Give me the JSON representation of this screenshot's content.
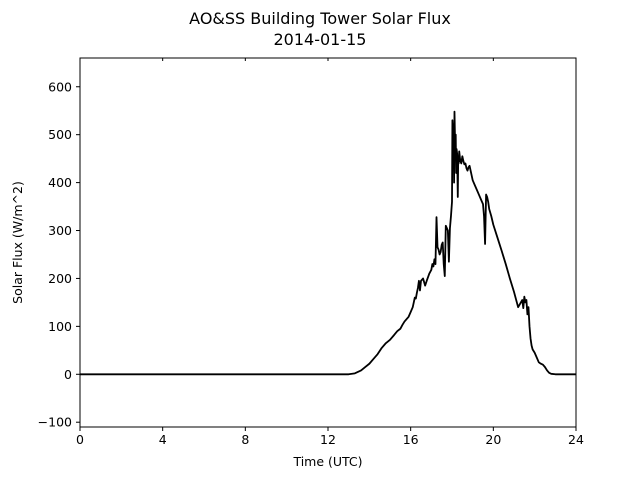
{
  "chart_data": {
    "type": "line",
    "title": "AO&SS Building Tower Solar Flux",
    "subtitle": "2014-01-15",
    "xlabel": "Time (UTC)",
    "ylabel": "Solar Flux (W/m^2)",
    "xlim": [
      0,
      24
    ],
    "ylim": [
      -110,
      660
    ],
    "xticks": [
      0,
      4,
      8,
      12,
      16,
      20,
      24
    ],
    "yticks": [
      -100,
      0,
      100,
      200,
      300,
      400,
      500,
      600
    ],
    "grid": false,
    "legend": "none",
    "series": [
      {
        "color": "#000000",
        "x": [
          0,
          12.0,
          12.6,
          13.0,
          13.3,
          13.6,
          13.8,
          14.0,
          14.2,
          14.4,
          14.6,
          14.8,
          15.0,
          15.2,
          15.35,
          15.5,
          15.6,
          15.7,
          15.8,
          15.9,
          16.0,
          16.1,
          16.15,
          16.2,
          16.25,
          16.3,
          16.35,
          16.4,
          16.45,
          16.5,
          16.6,
          16.7,
          16.8,
          16.9,
          17.0,
          17.05,
          17.1,
          17.15,
          17.2,
          17.25,
          17.3,
          17.35,
          17.4,
          17.45,
          17.5,
          17.55,
          17.6,
          17.65,
          17.7,
          17.75,
          17.8,
          17.85,
          17.9,
          17.95,
          18.0,
          18.02,
          18.05,
          18.08,
          18.1,
          18.12,
          18.15,
          18.18,
          18.2,
          18.22,
          18.25,
          18.28,
          18.3,
          18.32,
          18.35,
          18.4,
          18.45,
          18.5,
          18.55,
          18.6,
          18.65,
          18.7,
          18.75,
          18.8,
          18.85,
          18.9,
          19.0,
          19.1,
          19.2,
          19.3,
          19.4,
          19.5,
          19.55,
          19.6,
          19.65,
          19.7,
          19.75,
          19.8,
          19.9,
          20.0,
          20.2,
          20.4,
          20.6,
          20.8,
          21.0,
          21.2,
          21.4,
          21.45,
          21.5,
          21.55,
          21.6,
          21.65,
          21.7,
          21.75,
          21.8,
          21.85,
          21.9,
          22.0,
          22.1,
          22.2,
          22.3,
          22.4,
          22.5,
          22.6,
          22.7,
          22.8,
          23.0,
          23.2,
          23.5,
          24.0
        ],
        "y": [
          0,
          0,
          0,
          0,
          2,
          8,
          15,
          22,
          32,
          42,
          55,
          65,
          72,
          82,
          90,
          95,
          103,
          110,
          115,
          120,
          130,
          140,
          150,
          160,
          158,
          170,
          180,
          195,
          175,
          195,
          200,
          185,
          198,
          210,
          218,
          230,
          225,
          240,
          230,
          328,
          265,
          260,
          250,
          255,
          270,
          275,
          230,
          205,
          310,
          305,
          300,
          235,
          305,
          330,
          360,
          530,
          505,
          520,
          400,
          548,
          480,
          500,
          420,
          470,
          460,
          370,
          450,
          440,
          465,
          445,
          440,
          455,
          445,
          438,
          440,
          430,
          425,
          432,
          435,
          425,
          405,
          395,
          385,
          375,
          365,
          355,
          330,
          272,
          375,
          370,
          360,
          345,
          330,
          312,
          285,
          258,
          230,
          200,
          172,
          140,
          155,
          138,
          162,
          150,
          155,
          125,
          140,
          100,
          75,
          60,
          52,
          45,
          35,
          25,
          22,
          20,
          15,
          8,
          3,
          1,
          0,
          0,
          0,
          0
        ]
      }
    ]
  }
}
